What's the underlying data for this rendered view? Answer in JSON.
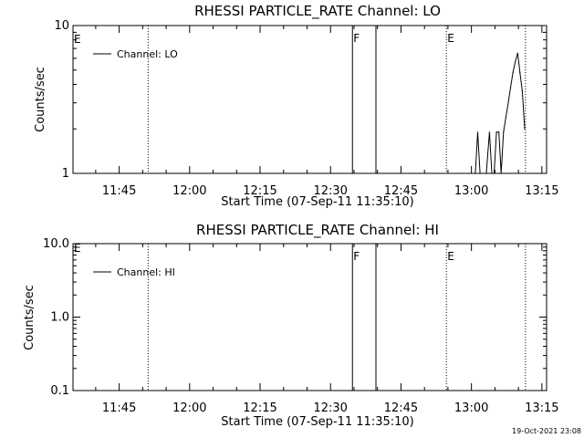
{
  "footer_stamp": "19-Oct-2021 23:08",
  "chart_data": [
    {
      "type": "line",
      "title": "RHESSI PARTICLE_RATE Channel: LO",
      "xlabel": "Start Time (07-Sep-11 11:35:10)",
      "ylabel": "Counts/sec",
      "yscale": "log",
      "xlim": [
        "11:35:10",
        "13:16:00"
      ],
      "ylim": [
        1,
        10
      ],
      "x_ticks": [
        "11:45",
        "12:00",
        "12:15",
        "12:30",
        "12:45",
        "13:00",
        "13:15"
      ],
      "y_ticks": [
        {
          "value": 1,
          "label": "1"
        },
        {
          "value": 10,
          "label": "10"
        }
      ],
      "grid": false,
      "legend": "top-left",
      "series": [
        {
          "name": "Channel: LO",
          "color": "#000000",
          "x": [
            "13:00:50",
            "13:01:20",
            "13:01:50",
            "13:02:30",
            "13:03:10",
            "13:03:50",
            "13:04:20",
            "13:04:50",
            "13:05:20",
            "13:05:50",
            "13:06:20",
            "13:06:50",
            "13:07:20",
            "13:07:50",
            "13:08:20",
            "13:08:50",
            "13:09:20",
            "13:09:50",
            "13:10:20",
            "13:10:50",
            "13:11:20"
          ],
          "y": [
            1.0,
            1.9,
            1.0,
            1.0,
            1.0,
            1.9,
            1.0,
            1.0,
            1.9,
            1.9,
            1.0,
            1.9,
            2.4,
            3.0,
            3.8,
            4.8,
            5.7,
            6.5,
            4.8,
            3.6,
            2.0
          ]
        }
      ],
      "vertical_lines": [
        {
          "time": "11:51:10",
          "style": "dotted",
          "label": ""
        },
        {
          "time": "12:34:40",
          "style": "solid",
          "label": "F"
        },
        {
          "time": "12:39:40",
          "style": "solid",
          "label": ""
        },
        {
          "time": "12:54:40",
          "style": "dotted",
          "label": "E"
        },
        {
          "time": "13:11:30",
          "style": "dotted",
          "label": ""
        }
      ],
      "corner_marker": "E"
    },
    {
      "type": "line",
      "title": "RHESSI PARTICLE_RATE Channel: HI",
      "xlabel": "Start Time (07-Sep-11 11:35:10)",
      "ylabel": "Counts/sec",
      "yscale": "log",
      "xlim": [
        "11:35:10",
        "13:16:00"
      ],
      "ylim": [
        0.1,
        10
      ],
      "x_ticks": [
        "11:45",
        "12:00",
        "12:15",
        "12:30",
        "12:45",
        "13:00",
        "13:15"
      ],
      "y_ticks": [
        {
          "value": 0.1,
          "label": "0.1"
        },
        {
          "value": 1,
          "label": "1.0"
        },
        {
          "value": 10,
          "label": "10.0"
        }
      ],
      "grid": false,
      "legend": "top-left",
      "series": [
        {
          "name": "Channel: HI",
          "color": "#000000",
          "x": [],
          "y": []
        }
      ],
      "vertical_lines": [
        {
          "time": "11:51:10",
          "style": "dotted",
          "label": ""
        },
        {
          "time": "12:34:40",
          "style": "solid",
          "label": "F"
        },
        {
          "time": "12:39:40",
          "style": "solid",
          "label": ""
        },
        {
          "time": "12:54:40",
          "style": "dotted",
          "label": "E"
        },
        {
          "time": "13:11:30",
          "style": "dotted",
          "label": ""
        }
      ],
      "corner_marker": "E"
    }
  ]
}
